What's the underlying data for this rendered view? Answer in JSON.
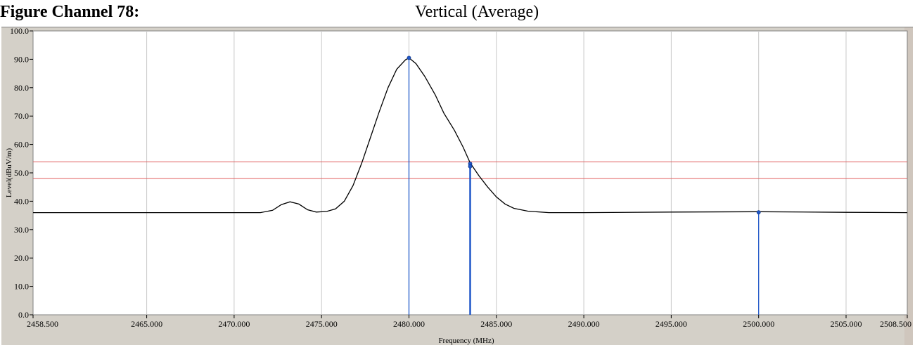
{
  "figure": {
    "title": "Figure Channel 78:",
    "subtitle": "Vertical (Average)"
  },
  "chart_data": {
    "type": "line",
    "xlabel": "Frequency (MHz)",
    "ylabel": "Level(dBuV/m)",
    "xlim": [
      2458.5,
      2508.5
    ],
    "ylim": [
      0,
      100
    ],
    "grid": true,
    "x_ticks": [
      2458.5,
      2465,
      2470,
      2475,
      2480,
      2485,
      2490,
      2495,
      2500,
      2505,
      2508.5
    ],
    "x_tick_labels": [
      "2458.500",
      "2465.000",
      "2470.000",
      "2475.000",
      "2480.000",
      "2485.000",
      "2490.000",
      "2495.000",
      "2500.000",
      "2505.000",
      "2508.500"
    ],
    "y_ticks": [
      0,
      10,
      20,
      30,
      40,
      50,
      60,
      70,
      80,
      90,
      100
    ],
    "y_tick_labels": [
      "0.0",
      "10.0",
      "20.0",
      "30.0",
      "40.0",
      "50.0",
      "60.0",
      "70.0",
      "80.0",
      "90.0",
      "100.0"
    ],
    "limit_lines": [
      53.9,
      48.0
    ],
    "series": [
      {
        "x": [
          2458.5,
          2465.0,
          2471.5,
          2472.2,
          2472.7,
          2473.2,
          2473.7,
          2474.2,
          2474.7,
          2475.3,
          2475.8,
          2476.3,
          2476.8,
          2477.3,
          2477.8,
          2478.3,
          2478.8,
          2479.3,
          2479.8,
          2480.0,
          2480.4,
          2480.9,
          2481.5,
          2482.0,
          2482.6,
          2483.1,
          2483.5,
          2484.0,
          2484.5,
          2485.0,
          2485.5,
          2486.0,
          2486.8,
          2488.0,
          2490.0,
          2495.0,
          2500.0,
          2505.0,
          2508.5
        ],
        "y": [
          36.0,
          36.0,
          36.0,
          36.8,
          38.8,
          39.8,
          39.0,
          37.0,
          36.2,
          36.4,
          37.3,
          40.0,
          45.5,
          53.5,
          62.5,
          71.5,
          80.0,
          86.5,
          89.8,
          90.5,
          88.5,
          84.0,
          77.5,
          71.0,
          65.0,
          59.0,
          53.5,
          49.0,
          45.0,
          41.5,
          39.0,
          37.5,
          36.5,
          36.0,
          36.0,
          36.2,
          36.3,
          36.1,
          36.0
        ]
      }
    ],
    "markers": [
      {
        "x": 2480.0,
        "y": 90.5
      },
      {
        "x": 2483.5,
        "y": 53.2
      },
      {
        "x": 2483.5,
        "y": 52.3
      },
      {
        "x": 2500.0,
        "y": 36.1
      }
    ]
  },
  "colors": {
    "trace": "#000000",
    "limit": "#e06060",
    "marker": "#1f57c8",
    "grid": "#c8c8c8",
    "frame": "#d4d0c8"
  }
}
